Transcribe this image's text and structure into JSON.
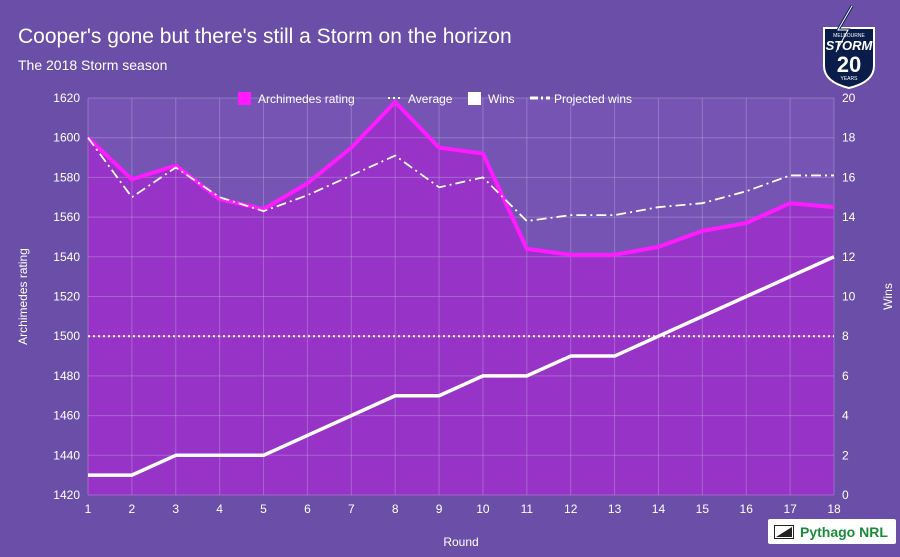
{
  "title": "Cooper's gone but there's still a Storm on the horizon",
  "subtitle": "The 2018 Storm season",
  "logo": {
    "top_text": "MELBOURNE",
    "main_text": "STORM",
    "number": "20",
    "bottom_text": "YEARS"
  },
  "source_badge": "Pythago NRL",
  "colors": {
    "background": "#6a4ea8",
    "rating": "#ff1aff",
    "fill": "#9b30c8",
    "white": "#ffffff"
  },
  "chart_data": {
    "type": "line",
    "title": "Cooper's gone but there's still a Storm on the horizon",
    "subtitle": "The 2018 Storm season",
    "xlabel": "Round",
    "ylabel_left": "Archimedes rating",
    "ylabel_right": "Wins",
    "x": [
      1,
      2,
      3,
      4,
      5,
      6,
      7,
      8,
      9,
      10,
      11,
      12,
      13,
      14,
      15,
      16,
      17,
      18
    ],
    "ylim_left": [
      1420,
      1620
    ],
    "yticks_left": [
      1420,
      1440,
      1460,
      1480,
      1500,
      1520,
      1540,
      1560,
      1580,
      1600,
      1620
    ],
    "ylim_right": [
      0,
      20
    ],
    "yticks_right": [
      0,
      2,
      4,
      6,
      8,
      10,
      12,
      14,
      16,
      18,
      20
    ],
    "legend_position": "top-center",
    "series": [
      {
        "name": "Archimedes rating",
        "axis": "left",
        "style": "area-line",
        "values": [
          1600,
          1579,
          1586,
          1569,
          1564,
          1577,
          1595,
          1618,
          1595,
          1592,
          1544,
          1541,
          1541,
          1545,
          1553,
          1557,
          1567,
          1565
        ]
      },
      {
        "name": "Average",
        "axis": "left",
        "style": "dotted",
        "values": [
          1500,
          1500,
          1500,
          1500,
          1500,
          1500,
          1500,
          1500,
          1500,
          1500,
          1500,
          1500,
          1500,
          1500,
          1500,
          1500,
          1500,
          1500
        ]
      },
      {
        "name": "Wins",
        "axis": "right",
        "style": "solid",
        "values": [
          1,
          1,
          2,
          2,
          2,
          3,
          4,
          5,
          5,
          6,
          6,
          7,
          7,
          8,
          9,
          10,
          11,
          12
        ]
      },
      {
        "name": "Projected wins",
        "axis": "right",
        "style": "dash-dot",
        "values": [
          18,
          15,
          16.5,
          15,
          14.3,
          15.1,
          16.1,
          17.1,
          15.5,
          16,
          13.8,
          14.1,
          14.1,
          14.5,
          14.7,
          15.3,
          16.1,
          16.1
        ]
      }
    ]
  }
}
